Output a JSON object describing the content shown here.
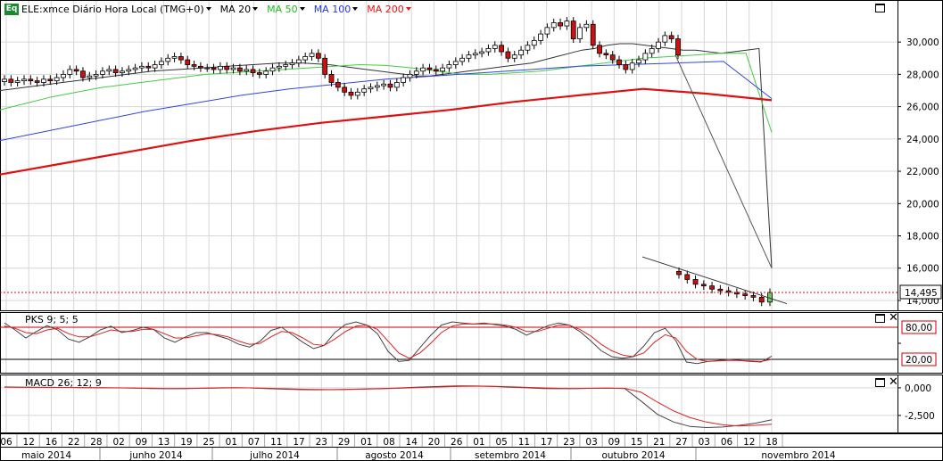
{
  "header": {
    "badge": "Eq",
    "symbol_label": "ELE:xmce Diário Hora Local (TMG+0)",
    "ma_labels": [
      {
        "label": "MA 20",
        "color": "#000000"
      },
      {
        "label": "MA 50",
        "color": "#22bb22"
      },
      {
        "label": "MA 100",
        "color": "#2233ff"
      },
      {
        "label": "MA 200",
        "color": "#ee1111"
      }
    ]
  },
  "colors": {
    "up_candle": "#ffffff",
    "down_candle": "#cc1111",
    "ma20": "#333333",
    "ma50": "#44cc44",
    "ma100": "#3344dd",
    "ma200": "#dd1111",
    "last_price_line": "#dd1111",
    "last_candle_up": "#66cc66"
  },
  "last_price_label": "14,495",
  "pks_panel": {
    "label": "PKS 9; 5; 5",
    "levels": [
      "80,00",
      "20,00"
    ]
  },
  "macd_panel": {
    "label": "MACD 26; 12; 9",
    "ticks": [
      "0,000",
      "-2,500"
    ]
  },
  "x_axis": {
    "day_ticks": [
      "06",
      "12",
      "16",
      "22",
      "28",
      "02",
      "09",
      "13",
      "19",
      "25",
      "01",
      "07",
      "11",
      "17",
      "23",
      "29",
      "01",
      "08",
      "14",
      "20",
      "26",
      "01",
      "05",
      "11",
      "17",
      "23",
      "03",
      "09",
      "15",
      "21",
      "27",
      "03",
      "06",
      "12",
      "18"
    ],
    "month_labels": [
      "maio 2014",
      "junho 2014",
      "julho 2014",
      "agosto 2014",
      "setembro 2014",
      "outubro 2014",
      "novembro 2014"
    ]
  },
  "chart_data": [
    {
      "type": "candlestick",
      "title": "ELE:xmce Diário Hora Local (TMG+0)",
      "ylim": [
        13500,
        31500
      ],
      "y_ticks": [
        "14,000",
        "16,000",
        "18,000",
        "20,000",
        "22,000",
        "24,000",
        "26,000",
        "28,000",
        "30,000"
      ],
      "last_price": 14.495,
      "close": [
        27.7,
        27.5,
        27.6,
        27.7,
        27.6,
        27.5,
        27.7,
        27.6,
        27.8,
        28.0,
        28.3,
        28.2,
        27.8,
        27.9,
        28.0,
        28.2,
        28.3,
        28.1,
        28.2,
        28.3,
        28.4,
        28.5,
        28.4,
        28.6,
        28.8,
        29.0,
        29.1,
        28.9,
        28.6,
        28.5,
        28.4,
        28.4,
        28.3,
        28.5,
        28.3,
        28.4,
        28.2,
        28.3,
        28.1,
        28.0,
        28.2,
        28.4,
        28.5,
        28.6,
        28.7,
        28.9,
        29.1,
        29.3,
        29.0,
        28.0,
        27.5,
        27.2,
        26.9,
        26.7,
        26.9,
        27.1,
        27.2,
        27.3,
        27.4,
        27.2,
        27.5,
        27.8,
        28.0,
        28.2,
        28.4,
        28.3,
        28.2,
        28.4,
        28.6,
        28.8,
        29.0,
        29.2,
        29.3,
        29.4,
        29.6,
        29.8,
        29.4,
        29.0,
        29.2,
        29.5,
        29.8,
        30.1,
        30.5,
        30.9,
        31.2,
        31.0,
        31.3,
        30.2,
        30.9,
        31.1,
        29.8,
        29.3,
        29.2,
        28.9,
        28.6,
        28.3,
        28.7,
        28.9,
        29.3,
        29.6,
        30.0,
        30.4,
        30.2,
        29.2,
        15.6,
        15.3,
        15.0,
        14.9,
        14.7,
        14.6,
        14.5,
        14.4,
        14.3,
        14.2,
        13.9,
        14.495
      ],
      "series": [
        {
          "name": "MA 20",
          "values": [
            27.0,
            27.1,
            27.2,
            27.3,
            27.4,
            27.5,
            27.6,
            27.7,
            27.8,
            27.9,
            28.0,
            28.1,
            28.2,
            28.25,
            28.3,
            28.35,
            28.4,
            28.45,
            28.5,
            28.55,
            28.6,
            28.65,
            28.7,
            28.7,
            28.7,
            28.65,
            28.6,
            28.5,
            28.4,
            28.3,
            28.2,
            28.1,
            28.0,
            27.9,
            27.9,
            28.0,
            28.1,
            28.2,
            28.3,
            28.4,
            28.5,
            28.6,
            28.7,
            28.9,
            29.1,
            29.3,
            29.5,
            29.6,
            29.8,
            29.9,
            29.9,
            29.8,
            29.7,
            29.6,
            29.5,
            29.5,
            29.4,
            29.3,
            29.4,
            29.5,
            29.6,
            16.0
          ]
        },
        {
          "name": "MA 50",
          "values": [
            25.8,
            26.2,
            26.6,
            26.9,
            27.2,
            27.4,
            27.6,
            27.8,
            28.0,
            28.1,
            28.2,
            28.3,
            28.4,
            28.5,
            28.6,
            28.55,
            28.4,
            28.2,
            28.0,
            28.0,
            28.1,
            28.2,
            28.4,
            28.6,
            28.8,
            29.0,
            29.1,
            29.2,
            29.3,
            29.3,
            24.4
          ]
        },
        {
          "name": "MA 100",
          "values": [
            23.9,
            24.5,
            25.1,
            25.7,
            26.2,
            26.7,
            27.1,
            27.4,
            27.7,
            27.9,
            28.1,
            28.3,
            28.5,
            28.6,
            28.7,
            28.8,
            26.5
          ]
        },
        {
          "name": "MA 200",
          "values": [
            21.8,
            22.5,
            23.2,
            23.9,
            24.5,
            25.0,
            25.4,
            25.8,
            26.3,
            26.7,
            27.1,
            26.8,
            26.4
          ]
        }
      ]
    },
    {
      "type": "line",
      "title": "PKS 9; 5; 5",
      "ylim": [
        0,
        100
      ],
      "levels": [
        80,
        20
      ],
      "series": [
        {
          "name": "PKS fast",
          "values": [
            88,
            75,
            60,
            72,
            83,
            75,
            58,
            52,
            62,
            75,
            82,
            70,
            74,
            80,
            76,
            60,
            52,
            62,
            70,
            70,
            64,
            58,
            48,
            43,
            54,
            74,
            80,
            66,
            52,
            40,
            46,
            70,
            85,
            90,
            84,
            68,
            35,
            16,
            18,
            42,
            65,
            84,
            90,
            88,
            86,
            88,
            85,
            82,
            76,
            65,
            74,
            83,
            88,
            84,
            72,
            55,
            36,
            25,
            22,
            25,
            45,
            70,
            78,
            55,
            15,
            12,
            16,
            18,
            20,
            18,
            16,
            15,
            26
          ]
        },
        {
          "name": "PKS slow",
          "values": [
            82,
            78,
            70,
            68,
            75,
            78,
            68,
            62,
            62,
            68,
            75,
            72,
            72,
            76,
            76,
            68,
            60,
            60,
            64,
            68,
            66,
            62,
            54,
            48,
            50,
            62,
            72,
            70,
            60,
            48,
            46,
            58,
            72,
            82,
            84,
            76,
            54,
            32,
            22,
            32,
            50,
            70,
            82,
            86,
            86,
            86,
            86,
            84,
            80,
            72,
            72,
            78,
            84,
            84,
            76,
            64,
            48,
            36,
            28,
            25,
            32,
            52,
            66,
            60,
            35,
            20,
            16,
            17,
            18,
            18,
            17,
            16,
            20
          ]
        }
      ]
    },
    {
      "type": "line",
      "title": "MACD 26; 12; 9",
      "ylim": [
        -3800,
        800
      ],
      "y_ticks": [
        "0,000",
        "-2,500"
      ],
      "series": [
        {
          "name": "MACD",
          "values": [
            80,
            60,
            40,
            40,
            30,
            20,
            0,
            -10,
            -30,
            -60,
            -80,
            -60,
            -40,
            -10,
            20,
            -10,
            -60,
            -120,
            -160,
            -180,
            -170,
            -140,
            -100,
            -60,
            -20,
            40,
            90,
            150,
            180,
            160,
            120,
            60,
            0,
            -60,
            -80,
            -60,
            -40,
            -20,
            -60,
            -1200,
            -2400,
            -3100,
            -3500,
            -3600,
            -3550,
            -3400,
            -3200,
            -2900
          ]
        },
        {
          "name": "Signal",
          "values": [
            60,
            50,
            40,
            35,
            30,
            20,
            10,
            0,
            -20,
            -40,
            -60,
            -60,
            -50,
            -30,
            0,
            -10,
            -40,
            -80,
            -120,
            -150,
            -160,
            -150,
            -120,
            -90,
            -50,
            0,
            50,
            100,
            140,
            150,
            130,
            90,
            40,
            -10,
            -50,
            -60,
            -50,
            -40,
            -50,
            -400,
            -1300,
            -2100,
            -2700,
            -3100,
            -3350,
            -3450,
            -3400,
            -3300
          ]
        }
      ]
    }
  ]
}
